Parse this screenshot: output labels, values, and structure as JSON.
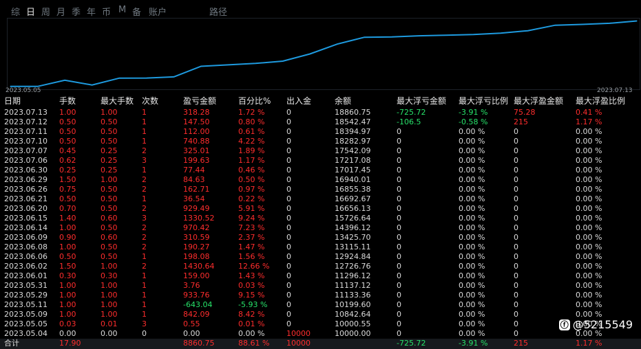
{
  "tabs": [
    "综",
    "日",
    "周",
    "月",
    "季",
    "年",
    "币",
    "M",
    "备",
    "账户",
    "路径"
  ],
  "active_tab": 1,
  "chart_dates": {
    "start": "2023.05.05",
    "end": "2023.07.13"
  },
  "chart_data": {
    "type": "line",
    "x": [
      "2023.05.04",
      "2023.05.05",
      "2023.05.09",
      "2023.05.11",
      "2023.05.29",
      "2023.05.31",
      "2023.06.01",
      "2023.06.02",
      "2023.06.06",
      "2023.06.08",
      "2023.06.09",
      "2023.06.14",
      "2023.06.15",
      "2023.06.20",
      "2023.06.21",
      "2023.06.26",
      "2023.06.29",
      "2023.06.30",
      "2023.07.06",
      "2023.07.07",
      "2023.07.10",
      "2023.07.11",
      "2023.07.12",
      "2023.07.13"
    ],
    "values": [
      10000.0,
      10000.55,
      10842.64,
      10199.6,
      11133.36,
      11137.12,
      11296.12,
      12726.76,
      12924.84,
      13115.11,
      13425.7,
      14396.12,
      15726.64,
      16656.13,
      16692.67,
      16855.38,
      16940.01,
      17017.45,
      17217.08,
      17542.09,
      18282.97,
      18394.97,
      18542.47,
      18860.75
    ],
    "ylim": [
      9800,
      19000
    ],
    "color": "#1e9be0"
  },
  "headers": [
    "日期",
    "手数",
    "最大手数",
    "次数",
    "盈亏金额",
    "百分比%",
    "出入金",
    "余额",
    "最大浮亏金额",
    "最大浮亏比例",
    "最大浮盈金额",
    "最大浮盈比例"
  ],
  "rows": [
    [
      "2023.07.13",
      "1.00",
      "1.00",
      "1",
      "318.28",
      "1.72 %",
      "0",
      "18860.75",
      "-725.72",
      "-3.91 %",
      "75.28",
      "0.41 %"
    ],
    [
      "2023.07.12",
      "0.50",
      "0.50",
      "1",
      "147.50",
      "0.80 %",
      "0",
      "18542.47",
      "-106.5",
      "-0.58 %",
      "215",
      "1.17 %"
    ],
    [
      "2023.07.11",
      "0.50",
      "0.50",
      "1",
      "112.00",
      "0.61 %",
      "0",
      "18394.97",
      "0",
      "0.00 %",
      "0",
      "0.00 %"
    ],
    [
      "2023.07.10",
      "0.50",
      "0.50",
      "1",
      "740.88",
      "4.22 %",
      "0",
      "18282.97",
      "0",
      "0.00 %",
      "0",
      "0.00 %"
    ],
    [
      "2023.07.07",
      "0.45",
      "0.25",
      "2",
      "325.01",
      "1.89 %",
      "0",
      "17542.09",
      "0",
      "0.00 %",
      "0",
      "0.00 %"
    ],
    [
      "2023.07.06",
      "0.62",
      "0.25",
      "3",
      "199.63",
      "1.17 %",
      "0",
      "17217.08",
      "0",
      "0.00 %",
      "0",
      "0.00 %"
    ],
    [
      "2023.06.30",
      "0.25",
      "0.25",
      "1",
      "77.44",
      "0.46 %",
      "0",
      "17017.45",
      "0",
      "0.00 %",
      "0",
      "0.00 %"
    ],
    [
      "2023.06.29",
      "1.50",
      "1.00",
      "2",
      "84.63",
      "0.50 %",
      "0",
      "16940.01",
      "0",
      "0.00 %",
      "0",
      "0.00 %"
    ],
    [
      "2023.06.26",
      "0.75",
      "0.50",
      "2",
      "162.71",
      "0.97 %",
      "0",
      "16855.38",
      "0",
      "0.00 %",
      "0",
      "0.00 %"
    ],
    [
      "2023.06.21",
      "0.50",
      "0.50",
      "1",
      "36.54",
      "0.22 %",
      "0",
      "16692.67",
      "0",
      "0.00 %",
      "0",
      "0.00 %"
    ],
    [
      "2023.06.20",
      "0.70",
      "0.50",
      "2",
      "929.49",
      "5.91 %",
      "0",
      "16656.13",
      "0",
      "0.00 %",
      "0",
      "0.00 %"
    ],
    [
      "2023.06.15",
      "1.40",
      "0.60",
      "3",
      "1330.52",
      "9.24 %",
      "0",
      "15726.64",
      "0",
      "0.00 %",
      "0",
      "0.00 %"
    ],
    [
      "2023.06.14",
      "1.00",
      "0.50",
      "2",
      "970.42",
      "7.23 %",
      "0",
      "14396.12",
      "0",
      "0.00 %",
      "0",
      "0.00 %"
    ],
    [
      "2023.06.09",
      "0.90",
      "0.60",
      "2",
      "310.59",
      "2.37 %",
      "0",
      "13425.70",
      "0",
      "0.00 %",
      "0",
      "0.00 %"
    ],
    [
      "2023.06.08",
      "1.00",
      "0.50",
      "2",
      "190.27",
      "1.47 %",
      "0",
      "13115.11",
      "0",
      "0.00 %",
      "0",
      "0.00 %"
    ],
    [
      "2023.06.06",
      "0.50",
      "0.50",
      "1",
      "198.08",
      "1.56 %",
      "0",
      "12924.84",
      "0",
      "0.00 %",
      "0",
      "0.00 %"
    ],
    [
      "2023.06.02",
      "1.50",
      "1.00",
      "2",
      "1430.64",
      "12.66 %",
      "0",
      "12726.76",
      "0",
      "0.00 %",
      "0",
      "0.00 %"
    ],
    [
      "2023.06.01",
      "0.30",
      "0.30",
      "1",
      "159.00",
      "1.43 %",
      "0",
      "11296.12",
      "0",
      "0.00 %",
      "0",
      "0.00 %"
    ],
    [
      "2023.05.31",
      "1.00",
      "1.00",
      "1",
      "3.76",
      "0.03 %",
      "0",
      "11137.12",
      "0",
      "0.00 %",
      "0",
      "0.00 %"
    ],
    [
      "2023.05.29",
      "1.00",
      "1.00",
      "1",
      "933.76",
      "9.15 %",
      "0",
      "11133.36",
      "0",
      "0.00 %",
      "0",
      "0.00 %"
    ],
    [
      "2023.05.11",
      "1.00",
      "1.00",
      "1",
      "-643.04",
      "-5.93 %",
      "0",
      "10199.60",
      "0",
      "0.00 %",
      "0",
      "0.00 %"
    ],
    [
      "2023.05.09",
      "1.00",
      "1.00",
      "1",
      "842.09",
      "8.42 %",
      "0",
      "10842.64",
      "0",
      "0.00 %",
      "0",
      "0.00 %"
    ],
    [
      "2023.05.05",
      "0.03",
      "0.01",
      "3",
      "0.55",
      "0.01 %",
      "0",
      "10000.55",
      "0",
      "0.00 %",
      "0",
      "0.00 %"
    ],
    [
      "2023.05.04",
      "0.00",
      "0.00",
      "0",
      "0.00",
      "0.00 %",
      "10000",
      "10000.00",
      "0",
      "0.00 %",
      "0",
      "0.00 %"
    ]
  ],
  "total": [
    "合计",
    "17.90",
    "",
    "",
    "8860.75",
    "88.61 %",
    "10000",
    "",
    "-725.72",
    "-3.91 %",
    "215",
    "1.17 %"
  ],
  "watermark": "@5215549",
  "watermark_icon": "weibo-like-logo-icon"
}
